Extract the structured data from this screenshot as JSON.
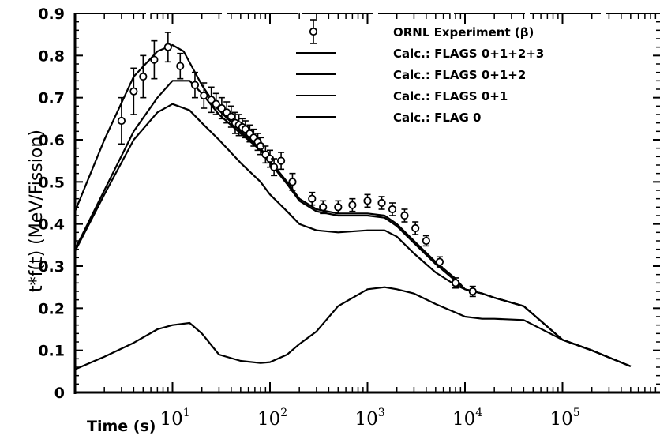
{
  "chart_data": {
    "type": "line",
    "xlabel": "Time (s)",
    "ylabel": "t*f(t)   (MeV/Fission)",
    "x_scale": "log",
    "xlim": [
      1,
      1000000
    ],
    "ylim": [
      0,
      0.9
    ],
    "yticks": [
      "0",
      "0.1",
      "0.2",
      "0.3",
      "0.4",
      "0.5",
      "0.6",
      "0.7",
      "0.8",
      "0.9"
    ],
    "xticks": [
      {
        "base": "10",
        "exp": "1",
        "x": 10
      },
      {
        "base": "10",
        "exp": "2",
        "x": 100
      },
      {
        "base": "10",
        "exp": "3",
        "x": 1000
      },
      {
        "base": "10",
        "exp": "4",
        "x": 10000
      },
      {
        "base": "10",
        "exp": "5",
        "x": 100000
      }
    ],
    "legend_position": "top-right",
    "series": [
      {
        "name": "Calc.: FLAGS 0+1+2+3",
        "color": "#000000",
        "x": [
          1,
          2,
          4,
          7,
          10,
          13,
          20,
          30,
          50,
          80,
          100,
          150,
          200,
          300,
          500,
          1000,
          1500,
          2000,
          3000,
          5000,
          8000,
          10000,
          15000,
          20000,
          40000,
          100000,
          200000,
          500000
        ],
        "y": [
          0.43,
          0.6,
          0.75,
          0.81,
          0.825,
          0.81,
          0.73,
          0.67,
          0.62,
          0.58,
          0.55,
          0.5,
          0.46,
          0.435,
          0.425,
          0.425,
          0.42,
          0.4,
          0.36,
          0.31,
          0.27,
          0.245,
          0.235,
          0.225,
          0.205,
          0.125,
          0.1,
          0.062
        ]
      },
      {
        "name": "Calc.: FLAGS 0+1+2",
        "color": "#000000",
        "x": [
          1,
          2,
          4,
          7,
          10,
          15,
          20,
          30,
          50,
          80,
          100,
          150,
          200,
          300,
          500,
          1000,
          1500,
          2000,
          3000,
          5000,
          8000,
          10000,
          15000,
          20000,
          40000,
          100000,
          200000,
          500000
        ],
        "y": [
          0.34,
          0.48,
          0.62,
          0.7,
          0.74,
          0.74,
          0.71,
          0.66,
          0.615,
          0.575,
          0.545,
          0.495,
          0.455,
          0.43,
          0.42,
          0.42,
          0.415,
          0.395,
          0.355,
          0.305,
          0.265,
          0.245,
          0.235,
          0.225,
          0.205,
          0.125,
          0.1,
          0.062
        ]
      },
      {
        "name": "Calc.: FLAGS 0+1",
        "color": "#000000",
        "x": [
          1,
          2,
          4,
          7,
          10,
          15,
          20,
          30,
          50,
          80,
          100,
          150,
          200,
          300,
          500,
          1000,
          1500,
          2000,
          3000,
          5000,
          8000,
          10000,
          15000,
          20000,
          40000,
          100000,
          200000,
          500000
        ],
        "y": [
          0.335,
          0.47,
          0.6,
          0.665,
          0.685,
          0.67,
          0.64,
          0.6,
          0.545,
          0.5,
          0.47,
          0.43,
          0.4,
          0.385,
          0.38,
          0.385,
          0.385,
          0.37,
          0.33,
          0.285,
          0.255,
          0.245,
          0.235,
          0.225,
          0.205,
          0.125,
          0.1,
          0.062
        ]
      },
      {
        "name": "Calc.: FLAG 0",
        "color": "#000000",
        "x": [
          1,
          2,
          4,
          7,
          10,
          15,
          20,
          30,
          50,
          80,
          100,
          150,
          200,
          300,
          500,
          1000,
          1500,
          2000,
          3000,
          5000,
          8000,
          10000,
          15000,
          20000,
          40000,
          100000,
          200000,
          500000
        ],
        "y": [
          0.055,
          0.085,
          0.118,
          0.15,
          0.16,
          0.165,
          0.14,
          0.09,
          0.075,
          0.07,
          0.072,
          0.09,
          0.115,
          0.145,
          0.205,
          0.245,
          0.25,
          0.245,
          0.235,
          0.21,
          0.19,
          0.18,
          0.175,
          0.175,
          0.172,
          0.125,
          0.1,
          0.062
        ]
      }
    ],
    "experiment": {
      "name": "ORNL Experiment (β)",
      "x": [
        3,
        4,
        5,
        6.5,
        9,
        12,
        17,
        21,
        25,
        28,
        32,
        36,
        40,
        44,
        48,
        52,
        56,
        62,
        68,
        75,
        80,
        90,
        100,
        110,
        130,
        170,
        270,
        350,
        500,
        700,
        1000,
        1400,
        1800,
        2400,
        3100,
        4000,
        5500,
        8000,
        12000
      ],
      "y": [
        0.645,
        0.715,
        0.75,
        0.79,
        0.82,
        0.775,
        0.73,
        0.705,
        0.695,
        0.685,
        0.675,
        0.665,
        0.655,
        0.64,
        0.635,
        0.63,
        0.625,
        0.615,
        0.605,
        0.595,
        0.585,
        0.565,
        0.555,
        0.535,
        0.55,
        0.5,
        0.46,
        0.44,
        0.44,
        0.445,
        0.455,
        0.45,
        0.435,
        0.42,
        0.39,
        0.36,
        0.31,
        0.26,
        0.24
      ],
      "err": [
        0.055,
        0.055,
        0.05,
        0.045,
        0.035,
        0.03,
        0.03,
        0.03,
        0.03,
        0.025,
        0.025,
        0.025,
        0.025,
        0.025,
        0.025,
        0.02,
        0.02,
        0.02,
        0.02,
        0.02,
        0.02,
        0.02,
        0.02,
        0.02,
        0.02,
        0.02,
        0.015,
        0.015,
        0.015,
        0.015,
        0.015,
        0.015,
        0.015,
        0.015,
        0.015,
        0.012,
        0.012,
        0.012,
        0.012
      ]
    }
  }
}
